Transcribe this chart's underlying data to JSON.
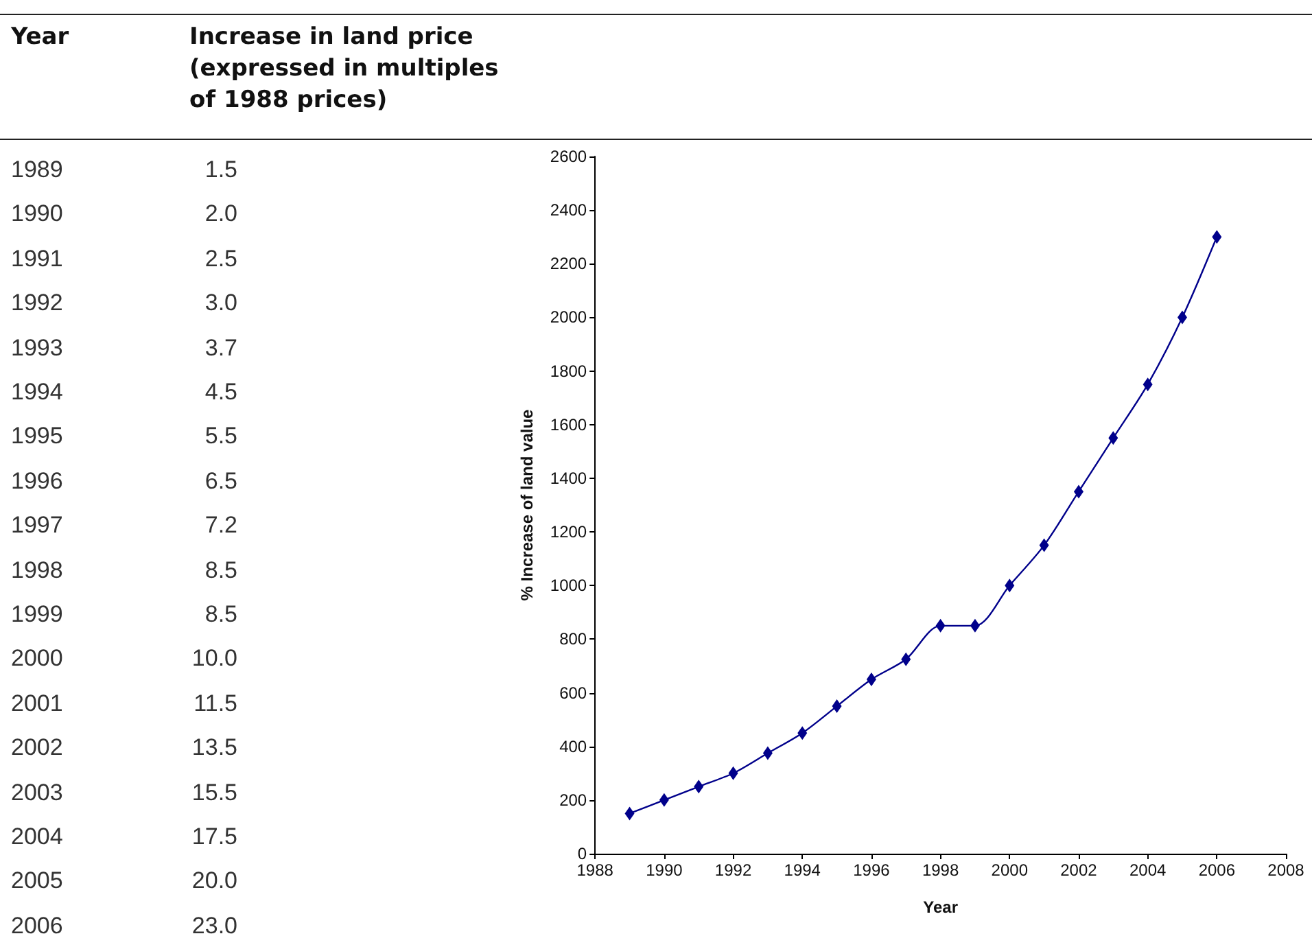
{
  "chart_data": {
    "type": "line",
    "xlabel": "Year",
    "ylabel": "% Increase of land value",
    "annotations": [
      "Year",
      "Increase in land price (expressed in multiples of 1988 prices)",
      "1989",
      "1.5",
      "1990",
      "2.0",
      "1991",
      "2.5",
      "1992",
      "3.0",
      "1993",
      "3.7",
      "1994",
      "4.5",
      "1995",
      "5.5",
      "1996",
      "6.5",
      "1997",
      "7.2",
      "1998",
      "8.5",
      "1999",
      "8.5",
      "2000",
      "10.0",
      "2001",
      "11.5",
      "2002",
      "13.5",
      "2003",
      "15.5",
      "2004",
      "17.5",
      "2005",
      "20.0",
      "2006",
      "23.0"
    ],
    "x": [
      1989,
      1990,
      1991,
      1992,
      1993,
      1994,
      1995,
      1996,
      1997,
      1998,
      1999,
      2000,
      2001,
      2002,
      2003,
      2004,
      2005,
      2006
    ],
    "series": [
      {
        "color": "#00008b",
        "values": [
          150,
          200,
          250,
          300,
          375,
          450,
          550,
          650,
          725,
          850,
          850,
          1000,
          1150,
          1350,
          1550,
          1750,
          2000,
          2300
        ]
      }
    ],
    "xlim": [
      1988,
      2008
    ],
    "xticks": [
      1988,
      1990,
      1992,
      1994,
      1996,
      1998,
      2000,
      2002,
      2004,
      2006,
      2008
    ],
    "ylim": [
      0,
      2600
    ],
    "yticks": [
      0,
      200,
      400,
      600,
      800,
      1000,
      1200,
      1400,
      1600,
      1800,
      2000,
      2200,
      2400,
      2600
    ],
    "grid": false,
    "marker": "diamond",
    "line_style": "solid"
  }
}
